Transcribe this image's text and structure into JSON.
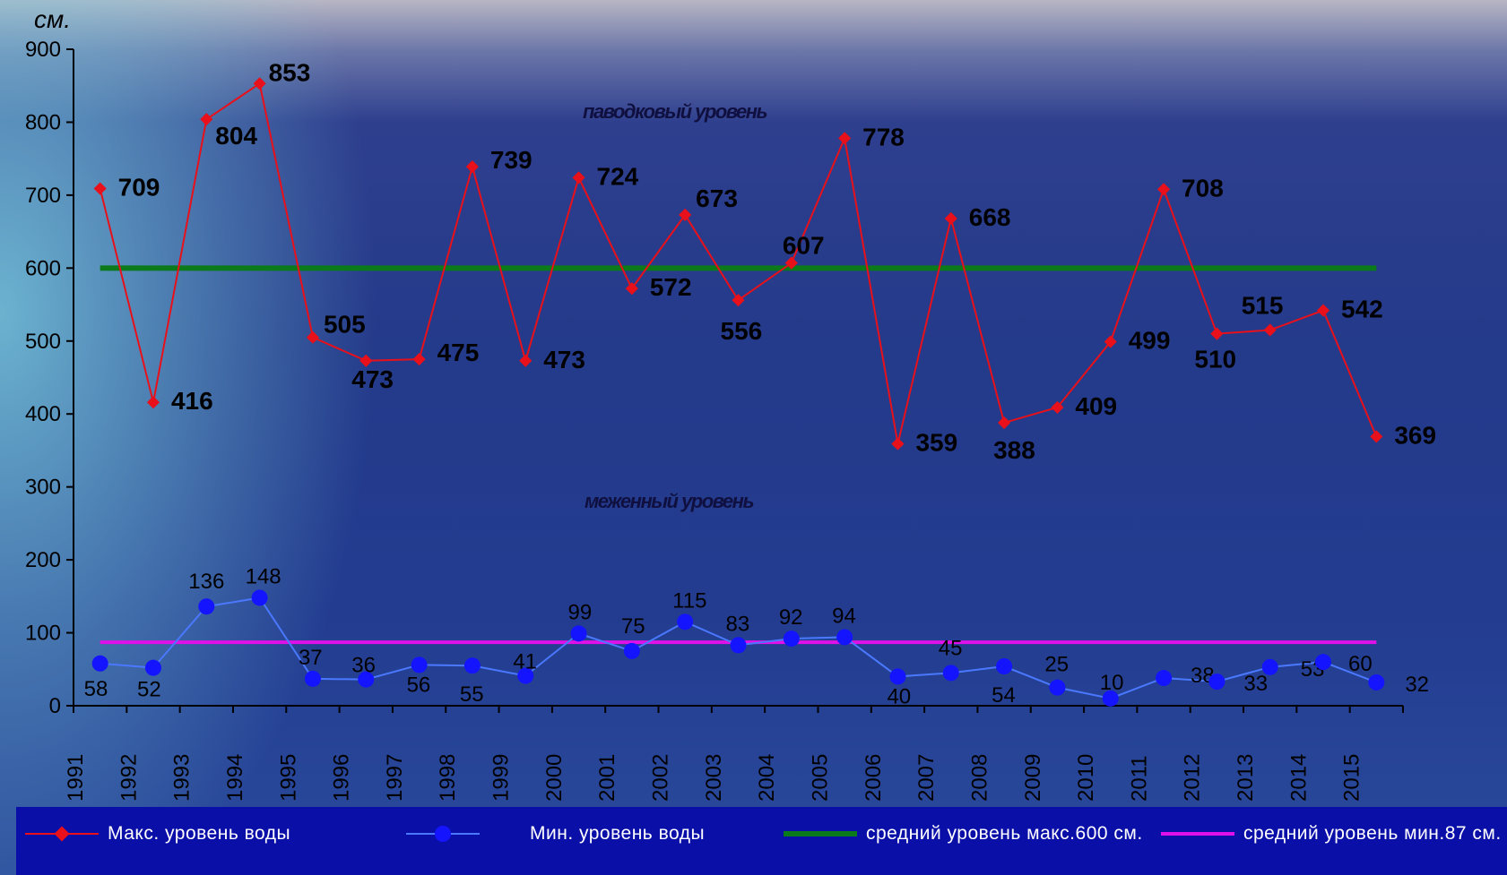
{
  "unit_label": "см.",
  "annotations": {
    "flood": "паводковый уровень",
    "low": "меженный уровень"
  },
  "legend": {
    "max": "Макс.  уровень воды",
    "min": "Мин.   уровень воды",
    "avg_max": "средний уровень макс.600 см.",
    "avg_min": "средний уровень мин.87 см."
  },
  "colors": {
    "max_series": "#e8101a",
    "min_series": "#1414ff",
    "avg_max_line": "#0a7a1a",
    "avg_min_line": "#e010e8"
  },
  "chart_data": {
    "type": "line",
    "title": "",
    "xlabel": "",
    "ylabel": "см.",
    "ylim": [
      0,
      900
    ],
    "yticks": [
      0,
      100,
      200,
      300,
      400,
      500,
      600,
      700,
      800,
      900
    ],
    "categories": [
      "1991",
      "1992",
      "1993",
      "1994",
      "1995",
      "1996",
      "1997",
      "1998",
      "1999",
      "2000",
      "2001",
      "2002",
      "2003",
      "2004",
      "2005",
      "2006",
      "2007",
      "2008",
      "2009",
      "2010",
      "2011",
      "2012",
      "2013",
      "2014",
      "2015"
    ],
    "series": [
      {
        "name": "Макс.  уровень воды",
        "values": [
          709,
          416,
          804,
          853,
          505,
          473,
          475,
          739,
          473,
          724,
          572,
          673,
          556,
          607,
          778,
          359,
          668,
          388,
          409,
          499,
          708,
          510,
          515,
          542,
          369
        ]
      },
      {
        "name": "Мин.   уровень воды",
        "values": [
          58,
          52,
          136,
          148,
          37,
          36,
          56,
          55,
          41,
          99,
          75,
          115,
          83,
          92,
          94,
          40,
          45,
          54,
          25,
          10,
          38,
          33,
          53,
          60,
          32
        ]
      },
      {
        "name": "средний уровень макс.600 см.",
        "values": [
          600,
          600,
          600,
          600,
          600,
          600,
          600,
          600,
          600,
          600,
          600,
          600,
          600,
          600,
          600,
          600,
          600,
          600,
          600,
          600,
          600,
          600,
          600,
          600,
          600
        ]
      },
      {
        "name": "средний уровень мин.87 см.",
        "values": [
          87,
          87,
          87,
          87,
          87,
          87,
          87,
          87,
          87,
          87,
          87,
          87,
          87,
          87,
          87,
          87,
          87,
          87,
          87,
          87,
          87,
          87,
          87,
          87,
          87
        ]
      }
    ],
    "grid": false,
    "legend_position": "bottom"
  }
}
